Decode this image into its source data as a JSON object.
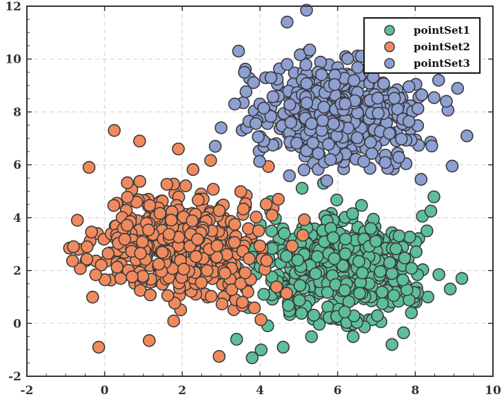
{
  "chart_data": {
    "type": "scatter",
    "title": "",
    "xlabel": "",
    "ylabel": "",
    "xlim": [
      -2,
      10
    ],
    "ylim": [
      -2,
      12
    ],
    "xticks": [
      "-2",
      "0",
      "2",
      "4",
      "6",
      "8",
      "10"
    ],
    "yticks": [
      "-2",
      "0",
      "2",
      "4",
      "6",
      "8",
      "10",
      "12"
    ],
    "grid": true,
    "legend_position": "top-right",
    "series": [
      {
        "name": "pointSet1",
        "color": "#5dbf9a",
        "center": [
          6,
          2
        ],
        "spread": [
          1,
          1
        ],
        "count": 500,
        "points": [
          [
            3.4,
            -0.6
          ],
          [
            3.8,
            -1.3
          ],
          [
            4.6,
            -0.9
          ],
          [
            7.4,
            -0.8
          ],
          [
            9.2,
            1.7
          ],
          [
            8.9,
            1.3
          ],
          [
            8.4,
            4.25
          ],
          [
            8.3,
            3.5
          ],
          [
            6.4,
            -0.5
          ],
          [
            3.7,
            0.6
          ],
          [
            4.1,
            1.1
          ],
          [
            7.9,
            0.4
          ]
        ]
      },
      {
        "name": "pointSet2",
        "color": "#f08a5d",
        "center": [
          2,
          3
        ],
        "spread": [
          1,
          1
        ],
        "count": 500,
        "points": [
          [
            0.25,
            7.3
          ],
          [
            0.9,
            6.9
          ],
          [
            -0.4,
            5.9
          ],
          [
            1.9,
            6.6
          ],
          [
            -0.7,
            3.9
          ],
          [
            -0.8,
            2.9
          ],
          [
            -0.45,
            2.9
          ],
          [
            -0.15,
            -0.9
          ],
          [
            1.15,
            -0.65
          ],
          [
            2.95,
            -1.25
          ],
          [
            3.1,
            1.9
          ],
          [
            3.55,
            0.8
          ]
        ]
      },
      {
        "name": "pointSet3",
        "color": "#8e9fd1",
        "center": [
          6,
          8
        ],
        "spread": [
          1,
          1
        ],
        "count": 500,
        "points": [
          [
            5.2,
            11.85
          ],
          [
            4.7,
            11.4
          ],
          [
            3.45,
            10.3
          ],
          [
            8.8,
            8.4
          ],
          [
            8.95,
            5.95
          ],
          [
            3.0,
            7.4
          ],
          [
            2.85,
            6.7
          ],
          [
            3.35,
            8.3
          ],
          [
            4.7,
            9.8
          ],
          [
            8.6,
            9.2
          ],
          [
            3.6,
            9.5
          ]
        ]
      }
    ]
  }
}
